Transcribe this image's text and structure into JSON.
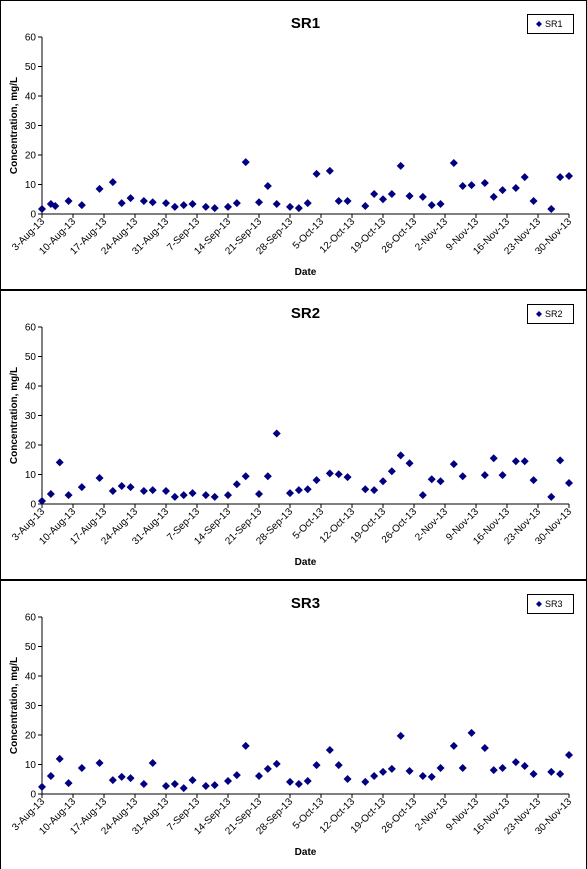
{
  "chart_data": [
    {
      "type": "scatter",
      "title": "SR1",
      "xlabel": "Date",
      "ylabel": "Concentration, mg/L",
      "legend": "top-right",
      "grid": false,
      "ylim": [
        0,
        60
      ],
      "yticks": [
        0,
        10,
        20,
        30,
        40,
        50,
        60
      ],
      "xlim": [
        "2013-08-03",
        "2013-11-30"
      ],
      "xticks": [
        {
          "value": "2013-08-03",
          "label": "3-Aug-13"
        },
        {
          "value": "2013-08-10",
          "label": "10-Aug-13"
        },
        {
          "value": "2013-08-17",
          "label": "17-Aug-13"
        },
        {
          "value": "2013-08-24",
          "label": "24-Aug-13"
        },
        {
          "value": "2013-08-31",
          "label": "31-Aug-13"
        },
        {
          "value": "2013-09-07",
          "label": "7-Sep-13"
        },
        {
          "value": "2013-09-14",
          "label": "14-Sep-13"
        },
        {
          "value": "2013-09-21",
          "label": "21-Sep-13"
        },
        {
          "value": "2013-09-28",
          "label": "28-Sep-13"
        },
        {
          "value": "2013-10-05",
          "label": "5-Oct-13"
        },
        {
          "value": "2013-10-12",
          "label": "12-Oct-13"
        },
        {
          "value": "2013-10-19",
          "label": "19-Oct-13"
        },
        {
          "value": "2013-10-26",
          "label": "26-Oct-13"
        },
        {
          "value": "2013-11-02",
          "label": "2-Nov-13"
        },
        {
          "value": "2013-11-09",
          "label": "9-Nov-13"
        },
        {
          "value": "2013-11-16",
          "label": "16-Nov-13"
        },
        {
          "value": "2013-11-23",
          "label": "23-Nov-13"
        },
        {
          "value": "2013-11-30",
          "label": "30-Nov-13"
        }
      ],
      "series": [
        {
          "name": "SR1",
          "color": "#000080",
          "x": [
            "2013-08-03",
            "2013-08-05",
            "2013-08-06",
            "2013-08-09",
            "2013-08-12",
            "2013-08-16",
            "2013-08-19",
            "2013-08-21",
            "2013-08-23",
            "2013-08-26",
            "2013-08-28",
            "2013-08-31",
            "2013-09-02",
            "2013-09-04",
            "2013-09-06",
            "2013-09-09",
            "2013-09-11",
            "2013-09-14",
            "2013-09-16",
            "2013-09-18",
            "2013-09-21",
            "2013-09-23",
            "2013-09-25",
            "2013-09-28",
            "2013-09-30",
            "2013-10-02",
            "2013-10-04",
            "2013-10-07",
            "2013-10-09",
            "2013-10-11",
            "2013-10-15",
            "2013-10-17",
            "2013-10-19",
            "2013-10-21",
            "2013-10-23",
            "2013-10-25",
            "2013-10-28",
            "2013-10-30",
            "2013-11-01",
            "2013-11-04",
            "2013-11-06",
            "2013-11-08",
            "2013-11-11",
            "2013-11-13",
            "2013-11-15",
            "2013-11-18",
            "2013-11-20",
            "2013-11-22",
            "2013-11-26",
            "2013-11-28",
            "2013-11-30"
          ],
          "values": [
            1.7,
            3.4,
            2.7,
            4.4,
            3,
            8.5,
            10.8,
            3.7,
            5.4,
            4.4,
            4,
            3.7,
            2.4,
            3,
            3.4,
            2.4,
            2,
            2.4,
            3.7,
            17.6,
            4,
            9.5,
            3.4,
            2.4,
            2,
            3.7,
            13.6,
            14.6,
            4.4,
            4.4,
            2.7,
            6.8,
            5,
            6.8,
            16.3,
            6.1,
            5.8,
            3,
            3.4,
            17.3,
            9.5,
            9.8,
            10.5,
            5.8,
            8.1,
            8.8,
            12.5,
            4.4,
            1.7,
            12.5,
            12.9
          ]
        }
      ]
    },
    {
      "type": "scatter",
      "title": "SR2",
      "xlabel": "Date",
      "ylabel": "Concentration, mg/L",
      "legend": "top-right",
      "grid": false,
      "ylim": [
        0,
        60
      ],
      "yticks": [
        0,
        10,
        20,
        30,
        40,
        50,
        60
      ],
      "xlim": [
        "2013-08-03",
        "2013-11-30"
      ],
      "xticks": [
        {
          "value": "2013-08-03",
          "label": "3-Aug-13"
        },
        {
          "value": "2013-08-10",
          "label": "10-Aug-13"
        },
        {
          "value": "2013-08-17",
          "label": "17-Aug-13"
        },
        {
          "value": "2013-08-24",
          "label": "24-Aug-13"
        },
        {
          "value": "2013-08-31",
          "label": "31-Aug-13"
        },
        {
          "value": "2013-09-07",
          "label": "7-Sep-13"
        },
        {
          "value": "2013-09-14",
          "label": "14-Sep-13"
        },
        {
          "value": "2013-09-21",
          "label": "21-Sep-13"
        },
        {
          "value": "2013-09-28",
          "label": "28-Sep-13"
        },
        {
          "value": "2013-10-05",
          "label": "5-Oct-13"
        },
        {
          "value": "2013-10-12",
          "label": "12-Oct-13"
        },
        {
          "value": "2013-10-19",
          "label": "19-Oct-13"
        },
        {
          "value": "2013-10-26",
          "label": "26-Oct-13"
        },
        {
          "value": "2013-11-02",
          "label": "2-Nov-13"
        },
        {
          "value": "2013-11-09",
          "label": "9-Nov-13"
        },
        {
          "value": "2013-11-16",
          "label": "16-Nov-13"
        },
        {
          "value": "2013-11-23",
          "label": "23-Nov-13"
        },
        {
          "value": "2013-11-30",
          "label": "30-Nov-13"
        }
      ],
      "series": [
        {
          "name": "SR2",
          "color": "#000080",
          "x": [
            "2013-08-03",
            "2013-08-05",
            "2013-08-07",
            "2013-08-09",
            "2013-08-12",
            "2013-08-16",
            "2013-08-19",
            "2013-08-21",
            "2013-08-23",
            "2013-08-26",
            "2013-08-28",
            "2013-08-31",
            "2013-09-02",
            "2013-09-04",
            "2013-09-06",
            "2013-09-09",
            "2013-09-11",
            "2013-09-14",
            "2013-09-16",
            "2013-09-18",
            "2013-09-21",
            "2013-09-23",
            "2013-09-25",
            "2013-09-28",
            "2013-09-30",
            "2013-10-02",
            "2013-10-04",
            "2013-10-07",
            "2013-10-09",
            "2013-10-11",
            "2013-10-15",
            "2013-10-17",
            "2013-10-19",
            "2013-10-21",
            "2013-10-23",
            "2013-10-25",
            "2013-10-28",
            "2013-10-30",
            "2013-11-01",
            "2013-11-04",
            "2013-11-06",
            "2013-11-11",
            "2013-11-13",
            "2013-11-15",
            "2013-11-18",
            "2013-11-20",
            "2013-11-22",
            "2013-11-26",
            "2013-11-28",
            "2013-11-30"
          ],
          "values": [
            1,
            3.4,
            14.1,
            3,
            5.7,
            8.8,
            4.4,
            6.1,
            5.7,
            4.4,
            4.7,
            4.4,
            2.4,
            3,
            3.7,
            3,
            2.4,
            3,
            6.7,
            9.4,
            3.4,
            9.4,
            23.9,
            3.7,
            4.7,
            5,
            8.1,
            10.4,
            10.1,
            9.1,
            5,
            4.7,
            7.7,
            11.1,
            16.5,
            13.8,
            3,
            8.4,
            7.7,
            13.5,
            9.4,
            9.8,
            15.5,
            9.8,
            14.5,
            14.5,
            8.1,
            2.4,
            14.8,
            7.1
          ]
        }
      ]
    },
    {
      "type": "scatter",
      "title": "SR3",
      "xlabel": "Date",
      "ylabel": "Concentration, mg/L",
      "legend": "top-right",
      "grid": false,
      "ylim": [
        0,
        60
      ],
      "yticks": [
        0,
        10,
        20,
        30,
        40,
        50,
        60
      ],
      "xlim": [
        "2013-08-03",
        "2013-11-30"
      ],
      "xticks": [
        {
          "value": "2013-08-03",
          "label": "3-Aug-13"
        },
        {
          "value": "2013-08-10",
          "label": "10-Aug-13"
        },
        {
          "value": "2013-08-17",
          "label": "17-Aug-13"
        },
        {
          "value": "2013-08-24",
          "label": "24-Aug-13"
        },
        {
          "value": "2013-08-31",
          "label": "31-Aug-13"
        },
        {
          "value": "2013-09-07",
          "label": "7-Sep-13"
        },
        {
          "value": "2013-09-14",
          "label": "14-Sep-13"
        },
        {
          "value": "2013-09-21",
          "label": "21-Sep-13"
        },
        {
          "value": "2013-09-28",
          "label": "28-Sep-13"
        },
        {
          "value": "2013-10-05",
          "label": "5-Oct-13"
        },
        {
          "value": "2013-10-12",
          "label": "12-Oct-13"
        },
        {
          "value": "2013-10-19",
          "label": "19-Oct-13"
        },
        {
          "value": "2013-10-26",
          "label": "26-Oct-13"
        },
        {
          "value": "2013-11-02",
          "label": "2-Nov-13"
        },
        {
          "value": "2013-11-09",
          "label": "9-Nov-13"
        },
        {
          "value": "2013-11-16",
          "label": "16-Nov-13"
        },
        {
          "value": "2013-11-23",
          "label": "23-Nov-13"
        },
        {
          "value": "2013-11-30",
          "label": "30-Nov-13"
        }
      ],
      "series": [
        {
          "name": "SR3",
          "color": "#000080",
          "x": [
            "2013-08-03",
            "2013-08-05",
            "2013-08-07",
            "2013-08-09",
            "2013-08-12",
            "2013-08-16",
            "2013-08-19",
            "2013-08-21",
            "2013-08-23",
            "2013-08-26",
            "2013-08-28",
            "2013-08-31",
            "2013-09-02",
            "2013-09-04",
            "2013-09-06",
            "2013-09-09",
            "2013-09-11",
            "2013-09-14",
            "2013-09-16",
            "2013-09-18",
            "2013-09-21",
            "2013-09-23",
            "2013-09-25",
            "2013-09-28",
            "2013-09-30",
            "2013-10-02",
            "2013-10-04",
            "2013-10-07",
            "2013-10-09",
            "2013-10-11",
            "2013-10-15",
            "2013-10-17",
            "2013-10-19",
            "2013-10-21",
            "2013-10-23",
            "2013-10-25",
            "2013-10-28",
            "2013-10-30",
            "2013-11-01",
            "2013-11-04",
            "2013-11-06",
            "2013-11-08",
            "2013-11-11",
            "2013-11-13",
            "2013-11-15",
            "2013-11-18",
            "2013-11-20",
            "2013-11-22",
            "2013-11-26",
            "2013-11-28",
            "2013-11-30"
          ],
          "values": [
            2.4,
            6.1,
            11.9,
            3.7,
            8.8,
            10.5,
            4.7,
            5.8,
            5.4,
            3.4,
            10.5,
            2.7,
            3.4,
            2,
            4.7,
            2.7,
            3,
            4.4,
            6.4,
            16.3,
            6.1,
            8.5,
            10.2,
            4.1,
            3.4,
            4.4,
            9.8,
            14.9,
            9.8,
            5.1,
            4.1,
            6.1,
            7.5,
            8.5,
            19.7,
            7.8,
            6.1,
            5.8,
            8.8,
            16.3,
            8.8,
            20.7,
            15.6,
            8.1,
            8.8,
            10.8,
            9.5,
            6.8,
            7.5,
            6.8,
            13.2
          ]
        }
      ]
    }
  ]
}
